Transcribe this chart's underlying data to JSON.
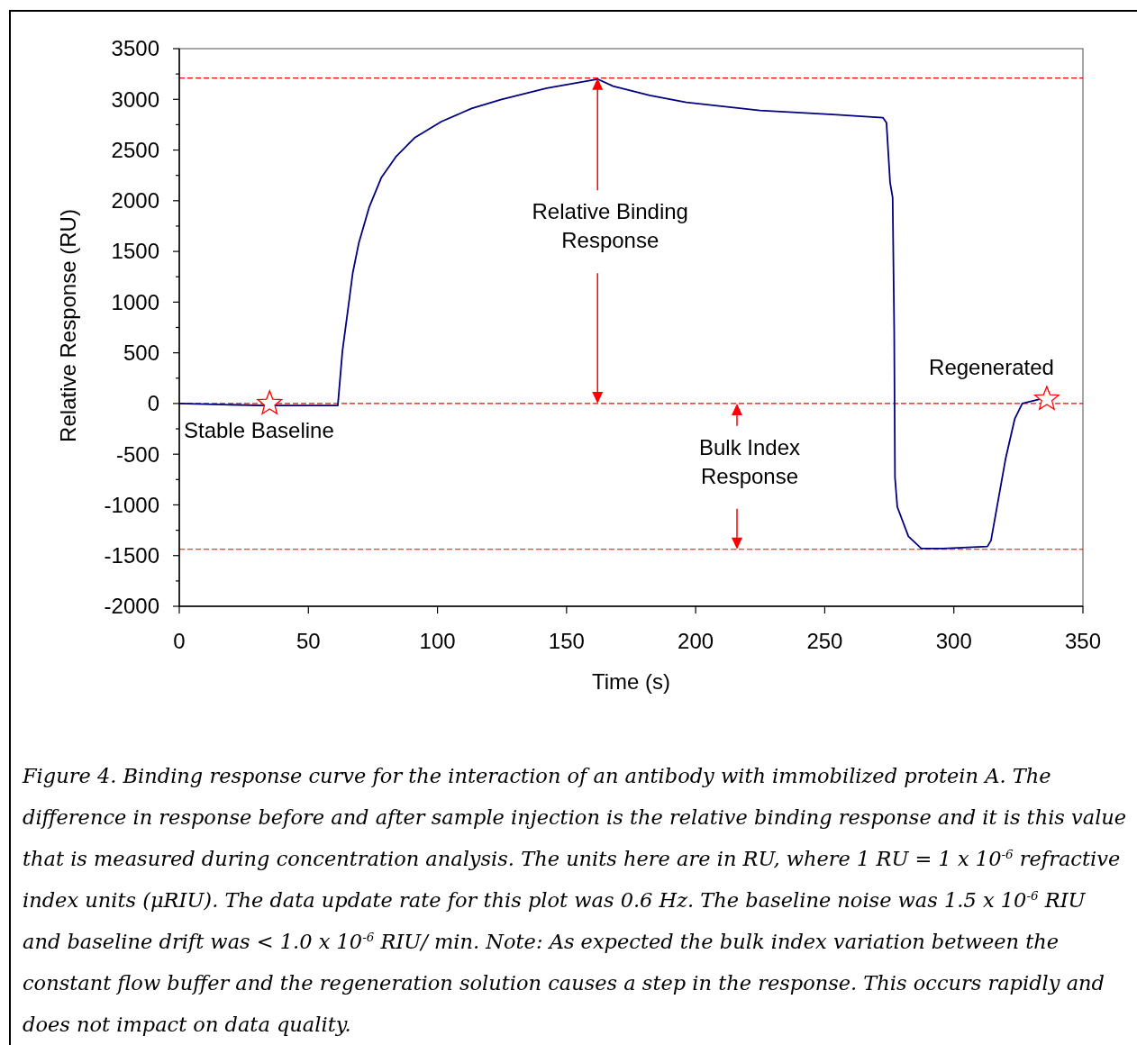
{
  "chart_data": {
    "type": "line",
    "xlabel": "Time (s)",
    "ylabel": "Relative Response (RU)",
    "xlim": [
      0,
      350
    ],
    "xticks": [
      0,
      50,
      100,
      150,
      200,
      250,
      300,
      350
    ],
    "ylim": [
      -2000,
      3500
    ],
    "yticks": [
      -2000,
      {
        "value": -1750,
        "label": null
      },
      -1500,
      {
        "value": -1250,
        "label": null
      },
      -1000,
      {
        "value": -750,
        "label": null
      },
      -500,
      {
        "value": -250,
        "label": null
      },
      0,
      {
        "value": 250,
        "label": null
      },
      500,
      {
        "value": 750,
        "label": null
      },
      1000,
      {
        "value": 1250,
        "label": null
      },
      1500,
      {
        "value": 1750,
        "label": null
      },
      2000,
      {
        "value": 2250,
        "label": null
      },
      2500,
      {
        "value": 2750,
        "label": null
      },
      3000,
      {
        "value": 3250,
        "label": null
      },
      3500
    ],
    "grid": false,
    "marker": "none",
    "line_style": "solid",
    "series": [
      {
        "color": "#000080",
        "x": [
          0,
          31.8,
          61.4,
          63.2,
          65.5,
          67.2,
          69.5,
          73.6,
          78.3,
          84.1,
          91.1,
          101.5,
          113.2,
          124.8,
          142.3,
          162,
          168,
          182.2,
          196.4,
          224.9,
          253.3,
          272.5,
          273.9,
          275.3,
          276.3,
          276.9,
          277.2,
          278.1,
          282.4,
          287.4,
          295.9,
          313,
          314.4,
          320,
          323.6,
          326.5,
          332.9
        ],
        "values": [
          0,
          -20,
          -20,
          520,
          960,
          1290,
          1580,
          1940,
          2230,
          2440,
          2620,
          2780,
          2910,
          3000,
          3110,
          3200,
          3130,
          3040,
          2970,
          2890,
          2850,
          2820,
          2770,
          2180,
          2030,
          720,
          -730,
          -1020,
          -1310,
          -1430,
          -1430,
          -1410,
          -1350,
          -550,
          -150,
          0,
          40
        ]
      }
    ],
    "ref_lines": [
      {
        "axis": "y",
        "value": 3210,
        "color": "#ff0000",
        "line_style": "dashed"
      },
      {
        "axis": "y",
        "value": 0,
        "color": "#ff0000",
        "line_style": "dashed"
      },
      {
        "axis": "y",
        "value": -1438,
        "color": "#ff0000",
        "line_style": "dashed"
      }
    ],
    "annotations": [
      {
        "text": "Stable Baseline",
        "x": 35,
        "y": 0
      },
      "Relative Binding Response",
      {
        "text": "Bulk Index Response",
        "x": 216,
        "y": -1438
      },
      {
        "text": "Regenerated",
        "x": 336,
        "y": 44
      },
      "Figure 4. Binding response curve for the interaction of an antibody with immobilized protein A. The difference in response before and after sample injection is the relative binding response and it is this value that is measured during concentration analysis. The units here are in RU, where 1 RU = 1 x 10$^{-6}$ refractive index units (μRIU). The data update rate for this plot was 0.6 Hz. The baseline noise was 1.5 x 10$^{-6}$ RIU and baseline drift was < 1.0 x 10$^{-6}$ RIU/ min. Note: As expected the bulk index variation between the constant flow buffer and the regeneration solution causes a step in the response. This occurs rapidly and does not impact on data quality."
    ]
  }
}
